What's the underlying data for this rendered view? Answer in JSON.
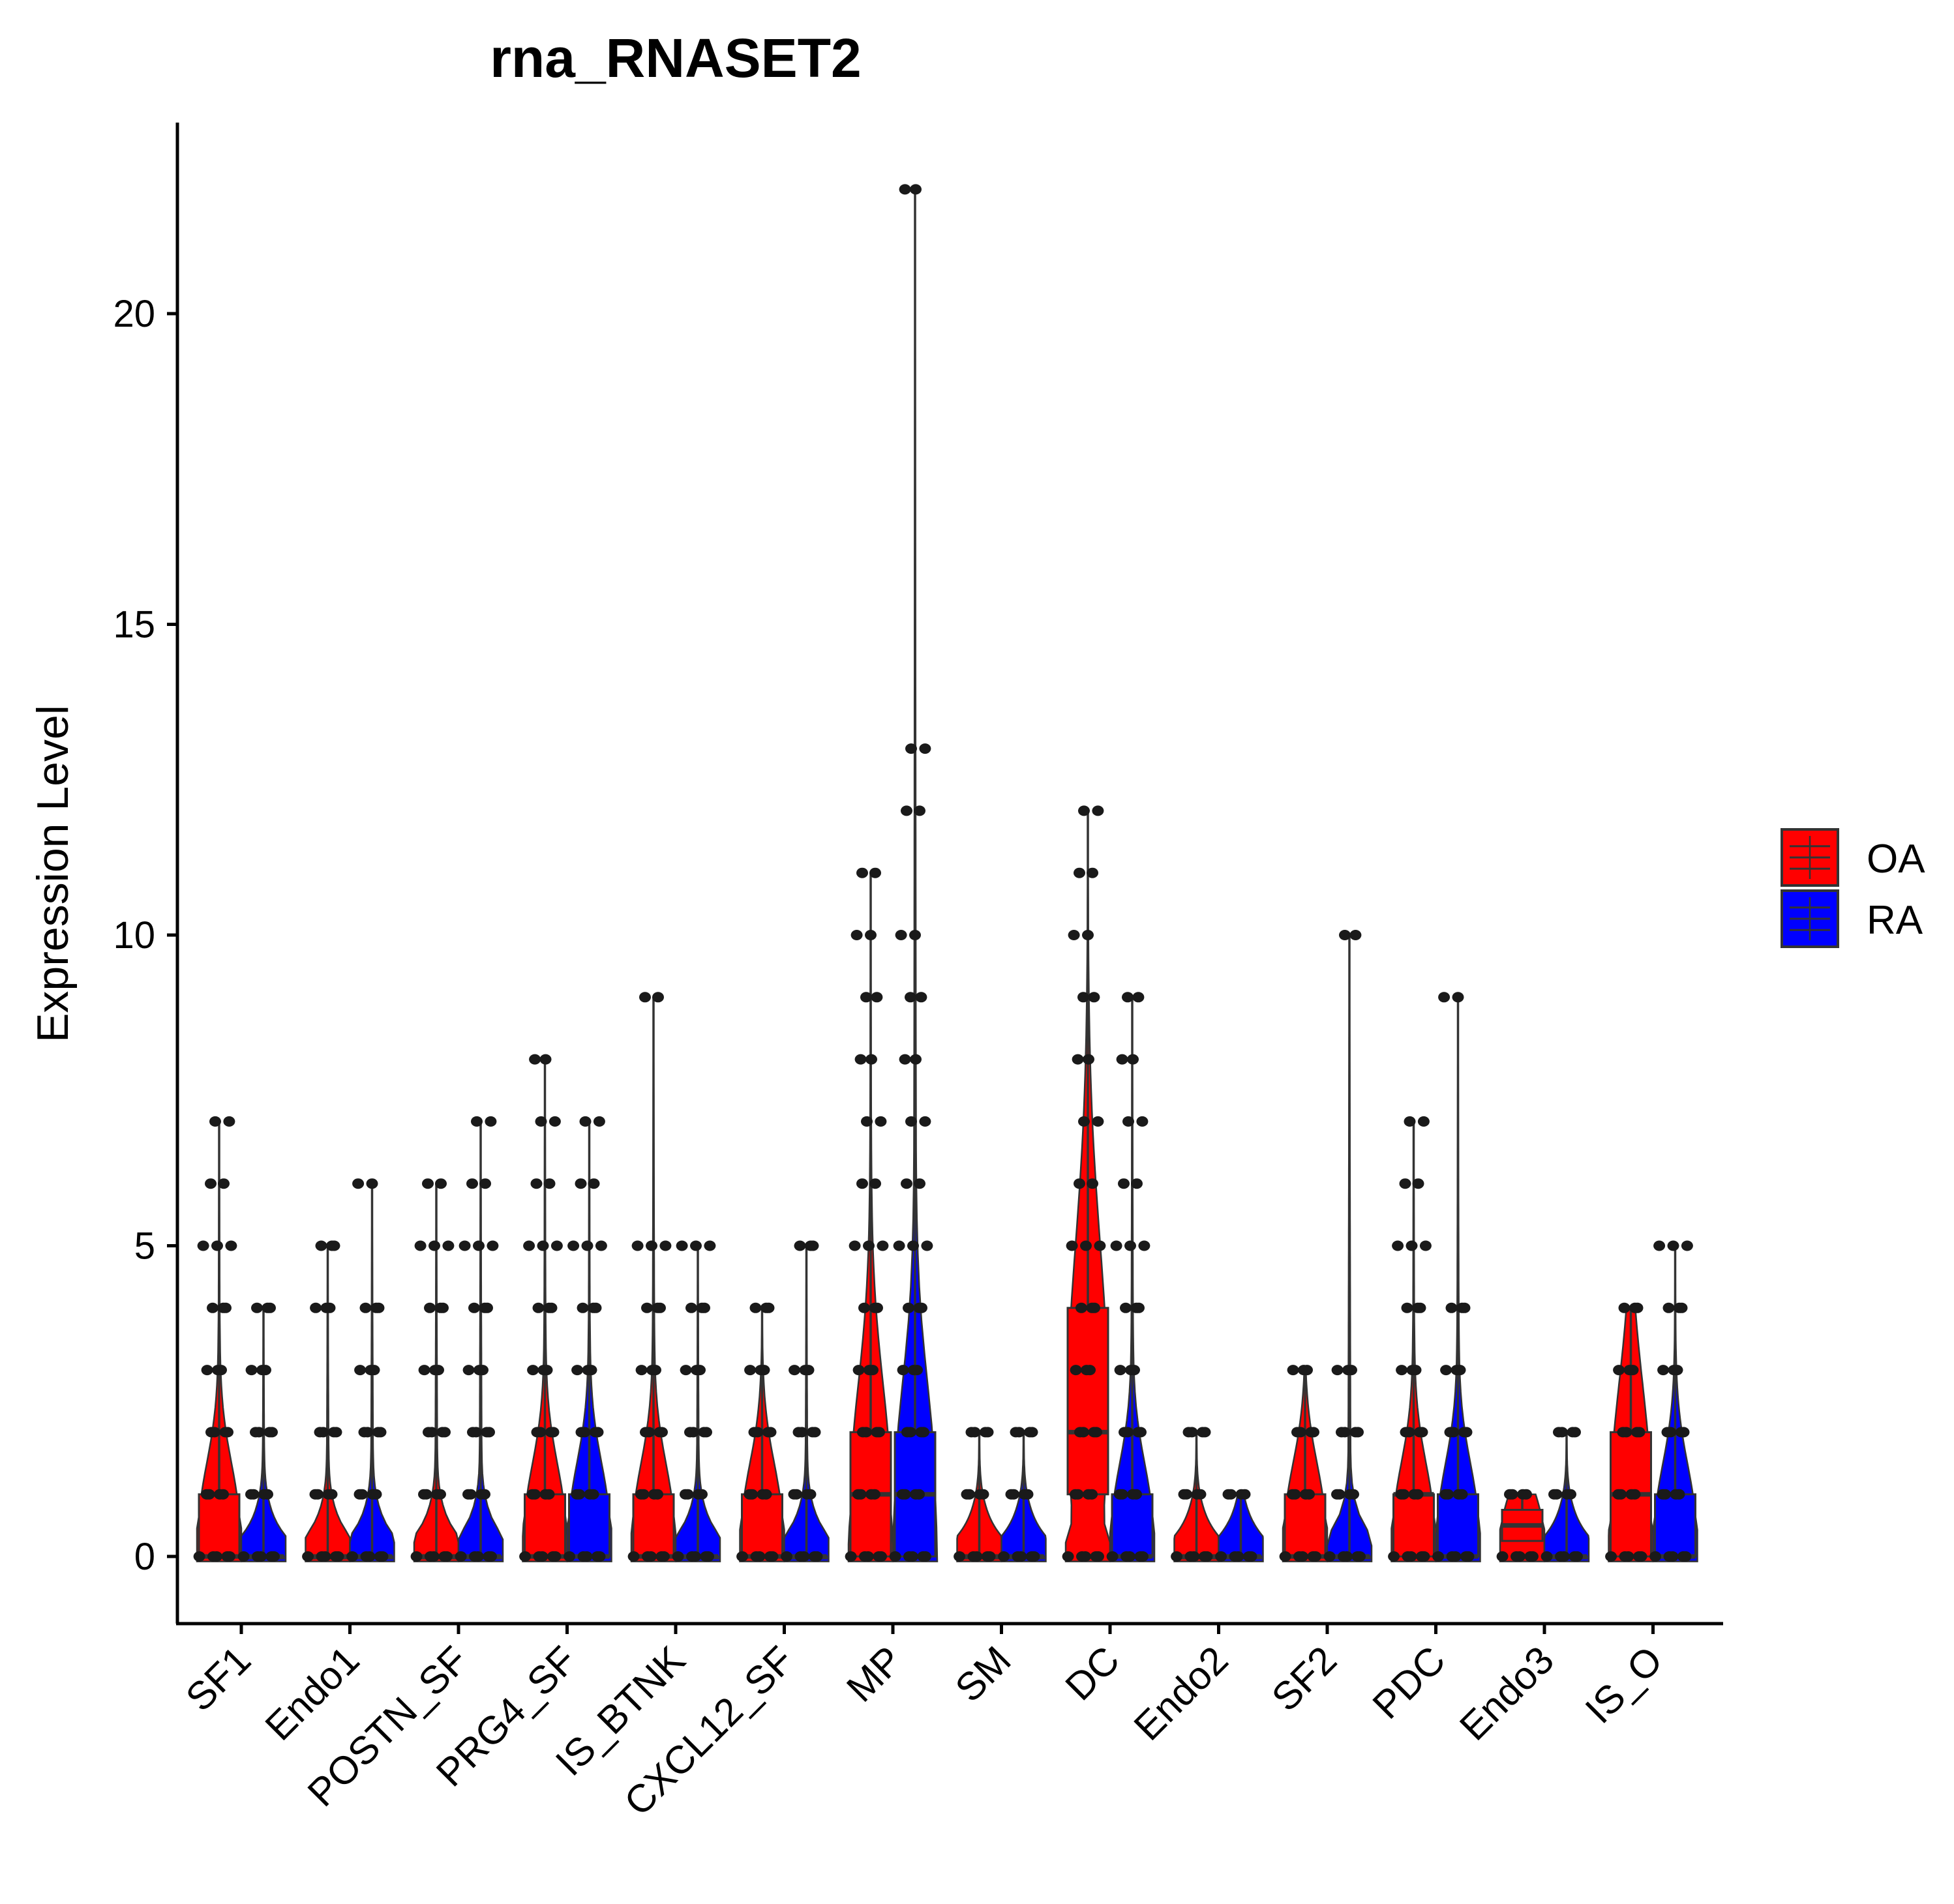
{
  "chart_data": {
    "type": "violin",
    "title": "rna_RNASET2",
    "xlabel": "",
    "ylabel": "Expression Level",
    "ylim": [
      -1,
      23
    ],
    "yticks": [
      0,
      5,
      10,
      15,
      20
    ],
    "categories": [
      "SF1",
      "Endo1",
      "POSTN_SF",
      "PRG4_SF",
      "IS_BTNK",
      "CXCL12_SF",
      "MP",
      "SM",
      "DC",
      "Endo2",
      "SF2",
      "PDC",
      "Endo3",
      "IS_O"
    ],
    "legend": {
      "position": "right",
      "entries": [
        {
          "name": "OA",
          "color": "#ff0000"
        },
        {
          "name": "RA",
          "color": "#0000ff"
        }
      ]
    },
    "series": [
      {
        "name": "OA",
        "color": "#ff0000",
        "groups": [
          {
            "category": "SF1",
            "max": 7,
            "q1": 0,
            "median": 0,
            "q3": 1,
            "points": [
              0,
              1,
              2,
              3,
              4,
              5,
              6,
              7
            ]
          },
          {
            "category": "Endo1",
            "max": 5,
            "q1": 0,
            "median": 0,
            "q3": 0,
            "points": [
              0,
              1,
              2,
              4,
              5
            ]
          },
          {
            "category": "POSTN_SF",
            "max": 6,
            "q1": 0,
            "median": 0,
            "q3": 0,
            "points": [
              0,
              1,
              2,
              3,
              4,
              5,
              6
            ]
          },
          {
            "category": "PRG4_SF",
            "max": 8,
            "q1": 0,
            "median": 0,
            "q3": 1,
            "points": [
              0,
              1,
              2,
              3,
              4,
              5,
              6,
              7,
              8
            ]
          },
          {
            "category": "IS_BTNK",
            "max": 9,
            "q1": 0,
            "median": 0,
            "q3": 1,
            "points": [
              0,
              1,
              2,
              3,
              4,
              5,
              9
            ]
          },
          {
            "category": "CXCL12_SF",
            "max": 4,
            "q1": 0,
            "median": 0,
            "q3": 1,
            "points": [
              0,
              1,
              2,
              3,
              4
            ]
          },
          {
            "category": "MP",
            "max": 11,
            "q1": 0,
            "median": 1,
            "q3": 2,
            "points": [
              0,
              1,
              2,
              3,
              4,
              5,
              6,
              7,
              8,
              9,
              10,
              11
            ]
          },
          {
            "category": "SM",
            "max": 2,
            "q1": 0,
            "median": 0,
            "q3": 0,
            "points": [
              0,
              1,
              2
            ]
          },
          {
            "category": "DC",
            "max": 12,
            "q1": 1,
            "median": 2,
            "q3": 4,
            "points": [
              0,
              1,
              2,
              3,
              4,
              5,
              6,
              7,
              8,
              9,
              10,
              11,
              12
            ]
          },
          {
            "category": "Endo2",
            "max": 2,
            "q1": 0,
            "median": 0,
            "q3": 0,
            "points": [
              0,
              1,
              2
            ]
          },
          {
            "category": "SF2",
            "max": 3,
            "q1": 0,
            "median": 0,
            "q3": 1,
            "points": [
              0,
              1,
              2,
              3
            ]
          },
          {
            "category": "PDC",
            "max": 7,
            "q1": 0,
            "median": 1,
            "q3": 1,
            "points": [
              0,
              1,
              2,
              3,
              4,
              5,
              6,
              7
            ]
          },
          {
            "category": "Endo3",
            "max": 1,
            "q1": 0.25,
            "median": 0.5,
            "q3": 0.75,
            "points": [
              0,
              1
            ]
          },
          {
            "category": "IS_O",
            "max": 4,
            "q1": 0,
            "median": 1,
            "q3": 2,
            "points": [
              0,
              1,
              2,
              3,
              4
            ]
          }
        ]
      },
      {
        "name": "RA",
        "color": "#0000ff",
        "groups": [
          {
            "category": "SF1",
            "max": 4,
            "q1": 0,
            "median": 0,
            "q3": 0,
            "points": [
              0,
              1,
              2,
              3,
              4
            ]
          },
          {
            "category": "Endo1",
            "max": 6,
            "q1": 0,
            "median": 0,
            "q3": 0,
            "points": [
              0,
              1,
              2,
              3,
              4,
              6
            ]
          },
          {
            "category": "POSTN_SF",
            "max": 7,
            "q1": 0,
            "median": 0,
            "q3": 0,
            "points": [
              0,
              1,
              2,
              3,
              4,
              5,
              6,
              7
            ]
          },
          {
            "category": "PRG4_SF",
            "max": 7,
            "q1": 0,
            "median": 0,
            "q3": 1,
            "points": [
              0,
              1,
              2,
              3,
              4,
              5,
              6,
              7
            ]
          },
          {
            "category": "IS_BTNK",
            "max": 5,
            "q1": 0,
            "median": 0,
            "q3": 0,
            "points": [
              0,
              1,
              2,
              3,
              4,
              5
            ]
          },
          {
            "category": "CXCL12_SF",
            "max": 5,
            "q1": 0,
            "median": 0,
            "q3": 0,
            "points": [
              0,
              1,
              2,
              3,
              5
            ]
          },
          {
            "category": "MP",
            "max": 22,
            "q1": 0,
            "median": 1,
            "q3": 2,
            "points": [
              0,
              1,
              2,
              3,
              4,
              5,
              6,
              7,
              8,
              9,
              10,
              12,
              13,
              22
            ]
          },
          {
            "category": "SM",
            "max": 2,
            "q1": 0,
            "median": 0,
            "q3": 0,
            "points": [
              0,
              1,
              2
            ]
          },
          {
            "category": "DC",
            "max": 9,
            "q1": 0,
            "median": 0,
            "q3": 1,
            "points": [
              0,
              1,
              2,
              3,
              4,
              5,
              6,
              7,
              8,
              9
            ]
          },
          {
            "category": "Endo2",
            "max": 1,
            "q1": 0,
            "median": 0,
            "q3": 0,
            "points": [
              0,
              1
            ]
          },
          {
            "category": "SF2",
            "max": 10,
            "q1": 0,
            "median": 0,
            "q3": 0,
            "points": [
              0,
              1,
              2,
              3,
              10
            ]
          },
          {
            "category": "PDC",
            "max": 9,
            "q1": 0,
            "median": 0,
            "q3": 1,
            "points": [
              0,
              1,
              2,
              3,
              4,
              9
            ]
          },
          {
            "category": "Endo3",
            "max": 2,
            "q1": 0,
            "median": 0,
            "q3": 0,
            "points": [
              0,
              1,
              2
            ]
          },
          {
            "category": "IS_O",
            "max": 5,
            "q1": 0,
            "median": 0,
            "q3": 1,
            "points": [
              0,
              1,
              2,
              3,
              4,
              5
            ]
          }
        ]
      }
    ]
  }
}
